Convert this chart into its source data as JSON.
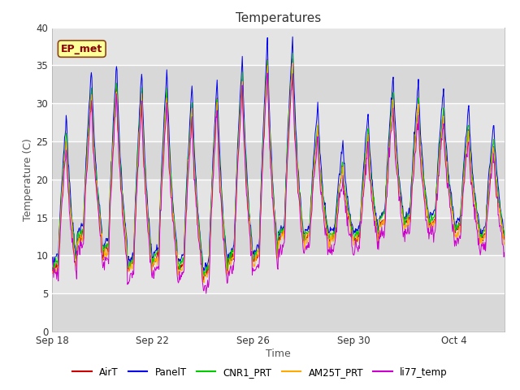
{
  "title": "Temperatures",
  "xlabel": "Time",
  "ylabel": "Temperature (C)",
  "ylim": [
    0,
    40
  ],
  "yticks": [
    0,
    5,
    10,
    15,
    20,
    25,
    30,
    35,
    40
  ],
  "series_colors": {
    "AirT": "#cc0000",
    "PanelT": "#0000ee",
    "CNR1_PRT": "#00cc00",
    "AM25T_PRT": "#ffaa00",
    "li77_temp": "#cc00cc"
  },
  "annotation_text": "EP_met",
  "annotation_color": "#8B0000",
  "annotation_bg": "#ffff99",
  "x_tick_labels": [
    "Sep 18",
    "Sep 22",
    "Sep 26",
    "Sep 30",
    "Oct 4"
  ],
  "x_tick_positions": [
    0,
    4,
    8,
    12,
    16
  ],
  "total_days": 18,
  "plot_bg": "#e8e8e8",
  "band_colors": [
    "#dcdcdc",
    "#e8e8e8"
  ],
  "band_ranges": [
    [
      0,
      5
    ],
    [
      5,
      10
    ],
    [
      10,
      15
    ],
    [
      15,
      20
    ],
    [
      20,
      25
    ],
    [
      25,
      30
    ],
    [
      30,
      35
    ],
    [
      35,
      40
    ]
  ]
}
